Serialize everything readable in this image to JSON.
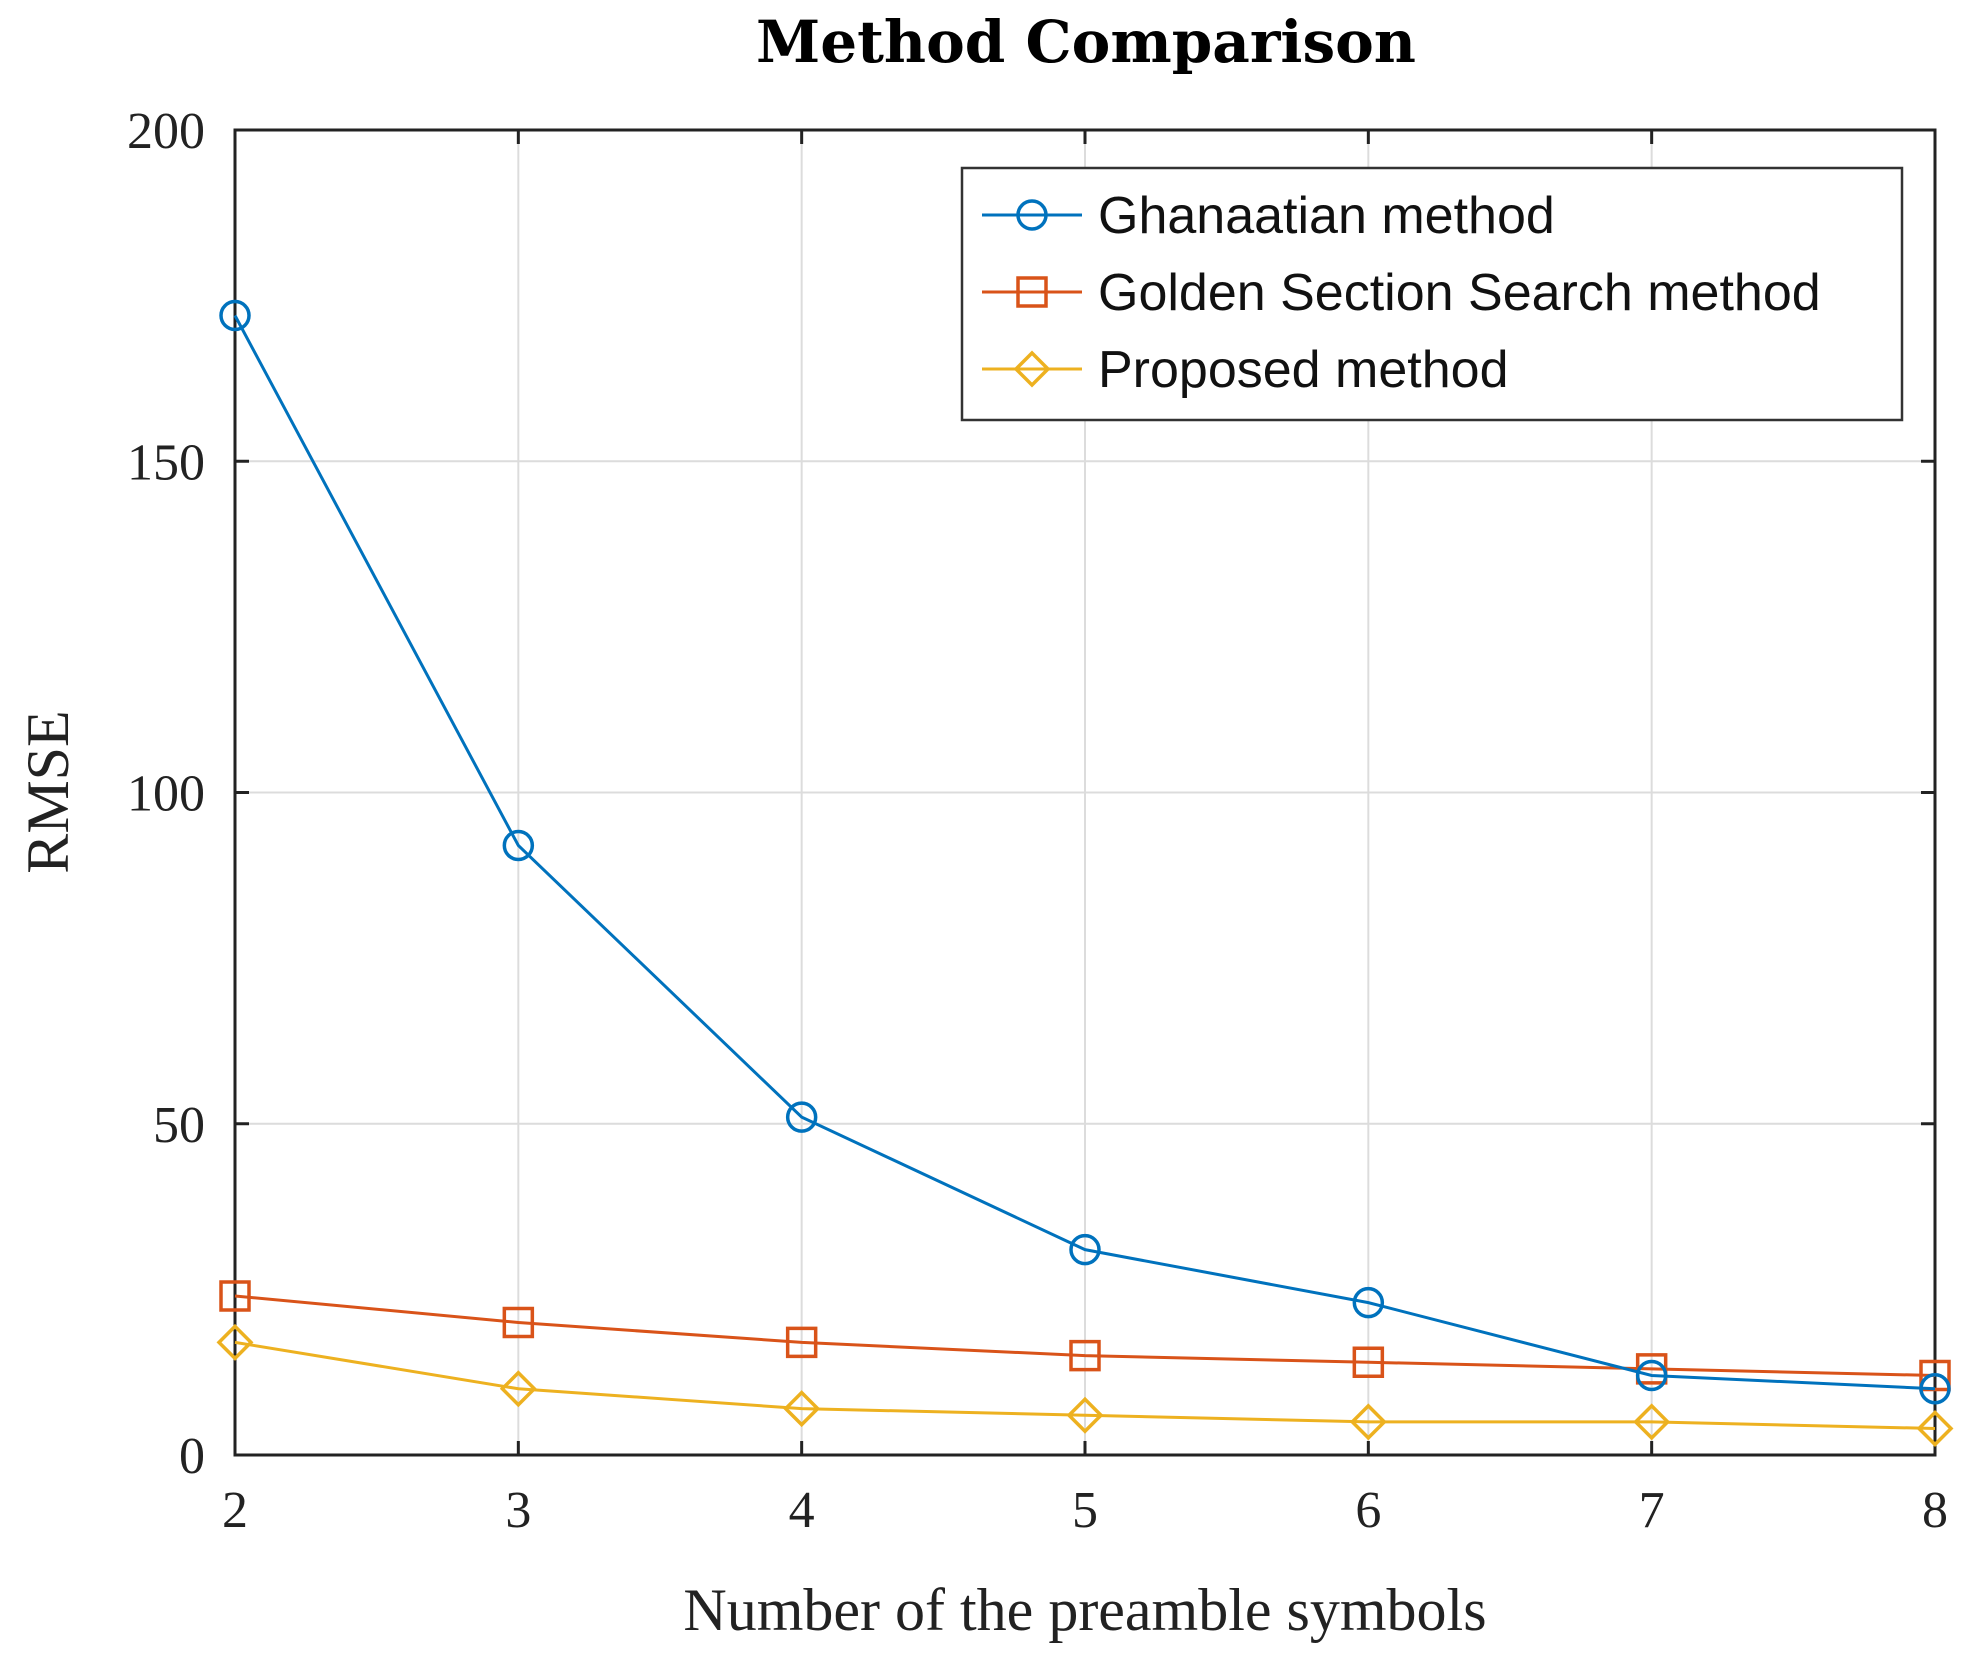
{
  "chart_data": {
    "type": "line",
    "title": "Method Comparison",
    "xlabel": "Number of the preamble symbols",
    "ylabel": "RMSE",
    "x": [
      2,
      3,
      4,
      5,
      6,
      7,
      8
    ],
    "xlim": [
      2,
      8
    ],
    "ylim": [
      0,
      200
    ],
    "xticks": [
      "2",
      "3",
      "4",
      "5",
      "6",
      "7",
      "8"
    ],
    "yticks": [
      "0",
      "50",
      "100",
      "150",
      "200"
    ],
    "yticks_values": [
      0,
      50,
      100,
      150,
      200
    ],
    "grid": true,
    "legend_position": "top-right",
    "series": [
      {
        "name": "Ghanaatian method",
        "color": "#0072BD",
        "marker": "circle",
        "values": [
          172,
          92,
          51,
          31,
          23,
          12,
          10
        ]
      },
      {
        "name": "Golden Section Search method",
        "color": "#D95319",
        "marker": "square",
        "values": [
          24,
          20,
          17,
          15,
          14,
          13,
          12
        ]
      },
      {
        "name": "Proposed method",
        "color": "#EDB120",
        "marker": "diamond",
        "values": [
          17,
          10,
          7,
          6,
          5,
          5,
          4
        ]
      }
    ]
  }
}
